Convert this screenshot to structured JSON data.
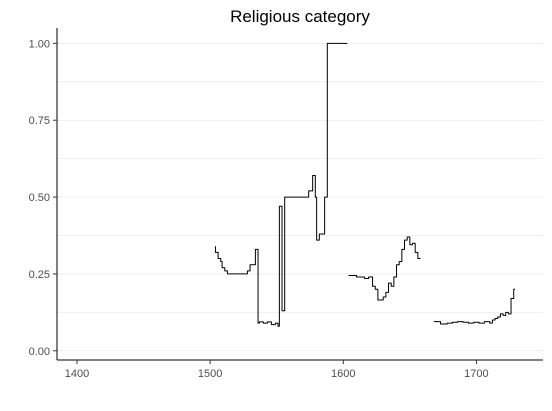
{
  "chart_data": {
    "type": "line",
    "title": "Religious category",
    "xlabel": "",
    "ylabel": "",
    "xlim": [
      1385,
      1750
    ],
    "ylim": [
      -0.03,
      1.05
    ],
    "x_ticks": [
      1400,
      1500,
      1600,
      1700
    ],
    "y_ticks": [
      0.0,
      0.25,
      0.5,
      0.75,
      1.0
    ],
    "x_tick_labels": [
      "1400",
      "1500",
      "1600",
      "1700"
    ],
    "y_tick_labels": [
      "0.00",
      "0.25",
      "0.50",
      "0.75",
      "1.00"
    ],
    "grid": "horizontal",
    "legend": "none",
    "line_color": "#000000",
    "segments": [
      {
        "x": [
          1504,
          1504,
          1506,
          1506,
          1508,
          1508,
          1509,
          1509,
          1511,
          1511,
          1513,
          1513,
          1518,
          1518,
          1528,
          1528,
          1530,
          1530,
          1534,
          1534,
          1536,
          1536,
          1537,
          1537,
          1540,
          1540,
          1543,
          1543,
          1546,
          1546,
          1549,
          1549,
          1551,
          1551,
          1552,
          1552,
          1554,
          1554,
          1556,
          1556,
          1574,
          1574,
          1577,
          1577,
          1579,
          1579,
          1580,
          1580,
          1582,
          1582,
          1586,
          1586,
          1588,
          1588,
          1603
        ],
        "y": [
          0.34,
          0.32,
          0.32,
          0.3,
          0.3,
          0.29,
          0.29,
          0.27,
          0.27,
          0.26,
          0.26,
          0.25,
          0.25,
          0.25,
          0.25,
          0.26,
          0.26,
          0.28,
          0.28,
          0.33,
          0.33,
          0.09,
          0.09,
          0.094,
          0.094,
          0.09,
          0.09,
          0.094,
          0.094,
          0.085,
          0.085,
          0.09,
          0.09,
          0.08,
          0.08,
          0.47,
          0.47,
          0.13,
          0.13,
          0.5,
          0.5,
          0.52,
          0.52,
          0.57,
          0.57,
          0.5,
          0.5,
          0.36,
          0.36,
          0.38,
          0.38,
          0.5,
          0.5,
          1.0,
          1.0
        ]
      },
      {
        "x": [
          1604,
          1610,
          1610,
          1616,
          1616,
          1619,
          1619,
          1622,
          1622,
          1624,
          1624,
          1626,
          1626,
          1630,
          1630,
          1632,
          1632,
          1634,
          1634,
          1636,
          1636,
          1638,
          1638,
          1640,
          1640,
          1642,
          1642,
          1644,
          1644,
          1646,
          1646,
          1648,
          1648,
          1650,
          1650,
          1652,
          1652,
          1654,
          1654,
          1656,
          1656,
          1658
        ],
        "y": [
          0.245,
          0.245,
          0.24,
          0.24,
          0.235,
          0.235,
          0.24,
          0.24,
          0.21,
          0.21,
          0.2,
          0.2,
          0.165,
          0.165,
          0.175,
          0.175,
          0.19,
          0.19,
          0.22,
          0.22,
          0.21,
          0.21,
          0.24,
          0.24,
          0.28,
          0.28,
          0.29,
          0.29,
          0.33,
          0.33,
          0.36,
          0.36,
          0.37,
          0.37,
          0.345,
          0.345,
          0.35,
          0.35,
          0.32,
          0.32,
          0.3,
          0.3
        ]
      },
      {
        "x": [
          1668,
          1673,
          1673,
          1678,
          1678,
          1682,
          1682,
          1686,
          1686,
          1690,
          1690,
          1694,
          1694,
          1698,
          1698,
          1702,
          1702,
          1706,
          1706,
          1710,
          1710,
          1712,
          1712,
          1714,
          1714,
          1716,
          1716,
          1718,
          1718,
          1720,
          1720,
          1722,
          1722,
          1724,
          1724,
          1726,
          1726,
          1728,
          1728,
          1729
        ],
        "y": [
          0.095,
          0.095,
          0.087,
          0.087,
          0.09,
          0.09,
          0.093,
          0.093,
          0.095,
          0.095,
          0.093,
          0.093,
          0.09,
          0.09,
          0.093,
          0.093,
          0.09,
          0.09,
          0.095,
          0.095,
          0.09,
          0.09,
          0.1,
          0.1,
          0.105,
          0.105,
          0.11,
          0.11,
          0.12,
          0.12,
          0.115,
          0.115,
          0.125,
          0.125,
          0.12,
          0.12,
          0.17,
          0.17,
          0.2,
          0.2
        ]
      }
    ]
  }
}
